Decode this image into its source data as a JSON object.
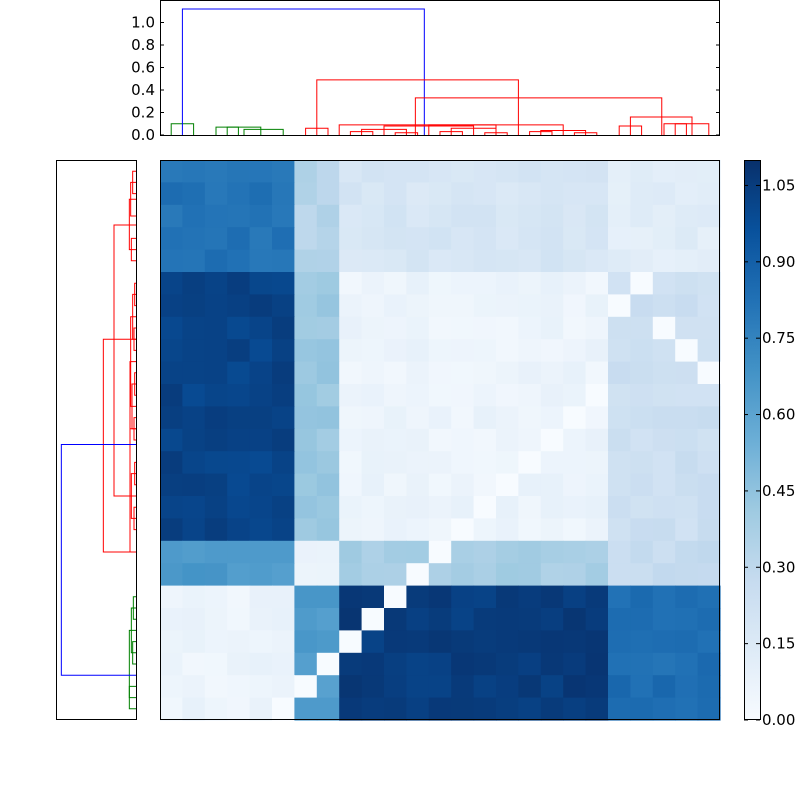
{
  "chart_data": {
    "type": "heatmap",
    "title": "",
    "colormap": "Blues",
    "grid": false,
    "legend": "none",
    "heatmap": {
      "rows": 25,
      "cols": 25,
      "vmin": 0.0,
      "vmax": 1.1,
      "block_values": [
        [
          0.82,
          0.33,
          0.18,
          0.12
        ],
        [
          1.02,
          0.42,
          0.06,
          0.24
        ],
        [
          0.65,
          0.05,
          0.38,
          0.27
        ],
        [
          0.06,
          0.64,
          1.05,
          0.84
        ]
      ],
      "row_groups": [
        0,
        0,
        0,
        0,
        0,
        1,
        1,
        1,
        1,
        1,
        1,
        1,
        1,
        1,
        1,
        1,
        1,
        2,
        2,
        3,
        3,
        3,
        3,
        3,
        3
      ],
      "col_groups": [
        0,
        0,
        0,
        0,
        0,
        0,
        1,
        1,
        2,
        2,
        2,
        2,
        2,
        2,
        2,
        2,
        2,
        2,
        2,
        2,
        3,
        3,
        3,
        3,
        3
      ],
      "diagonal": [
        [
          5,
          21
        ],
        [
          6,
          20
        ],
        [
          7,
          22
        ],
        [
          8,
          23
        ],
        [
          9,
          24
        ],
        [
          10,
          19
        ],
        [
          11,
          18
        ],
        [
          12,
          17
        ],
        [
          13,
          16
        ],
        [
          14,
          15
        ],
        [
          15,
          14
        ],
        [
          16,
          13
        ],
        [
          17,
          12
        ],
        [
          18,
          11
        ],
        [
          19,
          10
        ],
        [
          20,
          9
        ],
        [
          21,
          8
        ],
        [
          22,
          7
        ],
        [
          23,
          6
        ],
        [
          24,
          5
        ]
      ]
    },
    "colorbar": {
      "min": 0.0,
      "max": 1.1,
      "ticks": [
        0.0,
        0.15,
        0.3,
        0.45,
        0.6,
        0.75,
        0.9,
        1.05
      ],
      "tick_labels": [
        "0.00",
        "0.15",
        "0.30",
        "0.45",
        "0.60",
        "0.75",
        "0.90",
        "1.05"
      ]
    },
    "top_dendrogram": {
      "ylim": [
        0,
        1.2
      ],
      "yticks": [
        0.0,
        0.2,
        0.4,
        0.6,
        0.8,
        1.0
      ],
      "ytick_labels": [
        "0.0",
        "0.2",
        "0.4",
        "0.6",
        "0.8",
        "1.0"
      ],
      "links": [
        {
          "color": "#008000",
          "x": [
            0.5,
            1.5
          ],
          "y": [
            0.0,
            0.1
          ],
          "parent_x": 1.0
        },
        {
          "color": "#008000",
          "x": [
            2.5,
            3.5
          ],
          "y": [
            0.0,
            0.07
          ],
          "parent_x": 3.0
        },
        {
          "color": "#008000",
          "x": [
            3.0,
            4.5
          ],
          "y": [
            0.07,
            0.05
          ],
          "parent_x": 3.75
        },
        {
          "color": "#008000",
          "x": [
            3.75,
            5.5
          ],
          "y": [
            0.05,
            0.04
          ],
          "parent_x": 4.6
        },
        {
          "color": "#0000ff",
          "x": [
            1.0,
            11.8
          ],
          "y": [
            1.12,
            1.12
          ],
          "parent_x": 6.4
        },
        {
          "color": "#ff0000",
          "x": [
            6.5,
            7.5
          ],
          "y": [
            0.0,
            0.06
          ],
          "parent_x": 7.0
        },
        {
          "color": "#ff0000",
          "x": [
            8.5,
            9.5
          ],
          "y": [
            0.0,
            0.03
          ],
          "parent_x": 9.0
        },
        {
          "color": "#ff0000",
          "x": [
            10.5,
            11.5
          ],
          "y": [
            0.0,
            0.02
          ],
          "parent_x": 11.0
        },
        {
          "color": "#ff0000",
          "x": [
            12.5,
            13.5
          ],
          "y": [
            0.0,
            0.03
          ],
          "parent_x": 13.0
        },
        {
          "color": "#ff0000",
          "x": [
            14.5,
            15.5
          ],
          "y": [
            0.0,
            0.02
          ],
          "parent_x": 15.0
        },
        {
          "color": "#ff0000",
          "x": [
            16.5,
            17.5
          ],
          "y": [
            0.0,
            0.03
          ],
          "parent_x": 17.0
        },
        {
          "color": "#ff0000",
          "x": [
            18.5,
            19.5
          ],
          "y": [
            0.0,
            0.02
          ],
          "parent_x": 19.0
        },
        {
          "color": "#ff0000",
          "x": [
            20.5,
            21.5
          ],
          "y": [
            0.0,
            0.08
          ],
          "parent_x": 21.0
        },
        {
          "color": "#ff0000",
          "x": [
            22.5,
            23.5
          ],
          "y": [
            0.0,
            0.1
          ],
          "parent_x": 23.0
        },
        {
          "color": "#ff0000",
          "x": [
            23.0,
            24.5
          ],
          "y": [
            0.1,
            0.02
          ],
          "parent_x": 23.75
        },
        {
          "color": "#ff0000",
          "x": [
            21.0,
            23.75
          ],
          "y": [
            0.08,
            0.16
          ],
          "parent_x": 22.4
        },
        {
          "color": "#ff0000",
          "x": [
            9.0,
            11.0
          ],
          "y": [
            0.03,
            0.05
          ],
          "parent_x": 10.0
        },
        {
          "color": "#ff0000",
          "x": [
            13.0,
            15.0
          ],
          "y": [
            0.03,
            0.06
          ],
          "parent_x": 14.0
        },
        {
          "color": "#ff0000",
          "x": [
            17.0,
            19.0
          ],
          "y": [
            0.03,
            0.04
          ],
          "parent_x": 18.0
        },
        {
          "color": "#ff0000",
          "x": [
            10.0,
            14.0
          ],
          "y": [
            0.05,
            0.08
          ],
          "parent_x": 12.0
        },
        {
          "color": "#ff0000",
          "x": [
            12.0,
            18.0
          ],
          "y": [
            0.08,
            0.09
          ],
          "parent_x": 15.0
        },
        {
          "color": "#ff0000",
          "x": [
            8.0,
            15.0
          ],
          "y": [
            0.0,
            0.09
          ],
          "parent_x": 11.4
        },
        {
          "color": "#ff0000",
          "x": [
            11.4,
            22.4
          ],
          "y": [
            0.09,
            0.33
          ],
          "parent_x": 16.0
        },
        {
          "color": "#ff0000",
          "x": [
            7.0,
            16.0
          ],
          "y": [
            0.06,
            0.49
          ],
          "parent_x": 11.8
        }
      ]
    },
    "left_dendrogram": {
      "links": [
        {
          "color": "#ff0000",
          "y": [
            0.5,
            1.5
          ],
          "x": [
            0.0,
            0.05
          ]
        },
        {
          "color": "#ff0000",
          "y": [
            1.0,
            2.5
          ],
          "x": [
            0.05,
            0.08
          ]
        },
        {
          "color": "#ff0000",
          "y": [
            3.5,
            4.5
          ],
          "x": [
            0.0,
            0.07
          ]
        },
        {
          "color": "#ff0000",
          "y": [
            1.75,
            4.0
          ],
          "x": [
            0.08,
            0.1
          ]
        },
        {
          "color": "#ff0000",
          "y": [
            5.5,
            6.5
          ],
          "x": [
            0.0,
            0.02
          ]
        },
        {
          "color": "#ff0000",
          "y": [
            7.5,
            8.5
          ],
          "x": [
            0.0,
            0.03
          ]
        },
        {
          "color": "#ff0000",
          "y": [
            9.5,
            10.5
          ],
          "x": [
            0.0,
            0.02
          ]
        },
        {
          "color": "#ff0000",
          "y": [
            11.5,
            12.5
          ],
          "x": [
            0.0,
            0.03
          ]
        },
        {
          "color": "#ff0000",
          "y": [
            13.5,
            14.5
          ],
          "x": [
            0.0,
            0.02
          ]
        },
        {
          "color": "#ff0000",
          "y": [
            15.5,
            16.5
          ],
          "x": [
            0.0,
            0.03
          ]
        },
        {
          "color": "#ff0000",
          "y": [
            6.0,
            8.0
          ],
          "x": [
            0.03,
            0.05
          ]
        },
        {
          "color": "#ff0000",
          "y": [
            10.0,
            12.0
          ],
          "x": [
            0.03,
            0.06
          ]
        },
        {
          "color": "#ff0000",
          "y": [
            14.0,
            16.0
          ],
          "x": [
            0.03,
            0.07
          ]
        },
        {
          "color": "#ff0000",
          "y": [
            7.0,
            11.0
          ],
          "x": [
            0.06,
            0.08
          ]
        },
        {
          "color": "#ff0000",
          "y": [
            9.0,
            15.0
          ],
          "x": [
            0.08,
            0.09
          ]
        },
        {
          "color": "#ff0000",
          "y": [
            12.0,
            17.5
          ],
          "x": [
            0.09,
            0.04
          ]
        },
        {
          "color": "#ff0000",
          "y": [
            2.9,
            15.0
          ],
          "x": [
            0.1,
            0.33
          ]
        },
        {
          "color": "#ff0000",
          "y": [
            8.0,
            17.5
          ],
          "x": [
            0.33,
            0.49
          ]
        },
        {
          "color": "#008000",
          "y": [
            19.5,
            20.5
          ],
          "x": [
            0.0,
            0.04
          ]
        },
        {
          "color": "#008000",
          "y": [
            21.5,
            22.5
          ],
          "x": [
            0.0,
            0.05
          ]
        },
        {
          "color": "#008000",
          "y": [
            20.0,
            22.0
          ],
          "x": [
            0.05,
            0.07
          ]
        },
        {
          "color": "#008000",
          "y": [
            23.5,
            24.5
          ],
          "x": [
            0.0,
            0.1
          ]
        },
        {
          "color": "#008000",
          "y": [
            21.0,
            24.0
          ],
          "x": [
            0.07,
            0.1
          ]
        },
        {
          "color": "#0000ff",
          "y": [
            12.7,
            23.0
          ],
          "x": [
            1.12,
            1.12
          ]
        }
      ]
    }
  }
}
